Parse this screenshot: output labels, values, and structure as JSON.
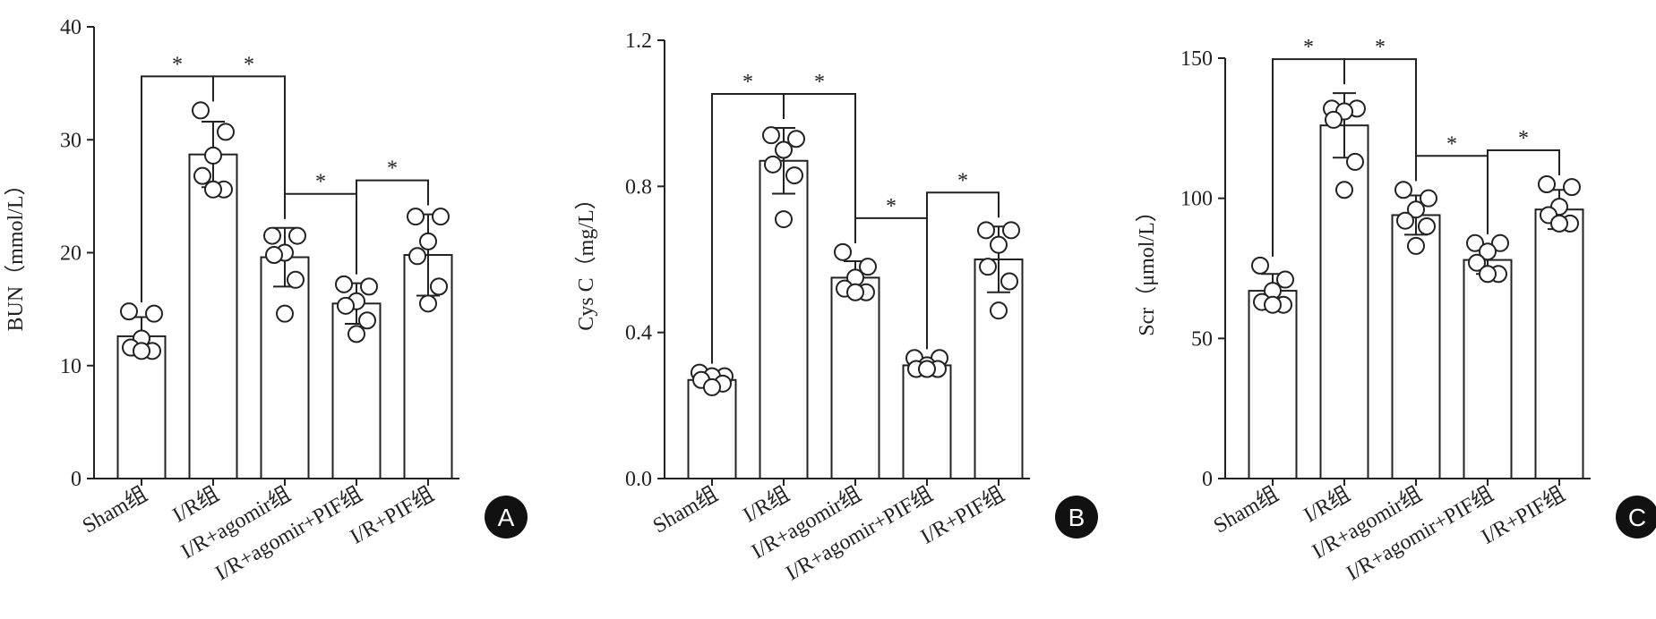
{
  "chart_data": [
    {
      "type": "bar",
      "label": "A",
      "y_label": "BUN（mmol/L）",
      "color": "#ffffff",
      "categories": [
        "Sham组",
        "I/R组",
        "I/R+agomir组",
        "I/R+agomir+PIF组",
        "I/R+PIF组"
      ],
      "values": [
        12.6,
        28.7,
        19.6,
        15.5,
        19.8
      ],
      "errors": [
        1.7,
        2.9,
        2.6,
        1.8,
        3.6
      ],
      "points": [
        [
          14.8,
          14.6,
          12.4,
          11.6,
          11.3,
          11.3
        ],
        [
          32.6,
          30.7,
          28.6,
          26.8,
          25.6,
          25.6
        ],
        [
          21.5,
          21.5,
          20.0,
          19.8,
          17.6,
          14.6
        ],
        [
          17.2,
          17.0,
          15.7,
          15.3,
          14.0,
          12.8
        ],
        [
          23.2,
          23.2,
          21.0,
          19.7,
          17.0,
          15.5
        ]
      ],
      "ylim": [
        0,
        40
      ],
      "yticks": [
        0,
        10,
        20,
        30,
        40
      ],
      "significance": [
        {
          "groups": [
            "Sham组",
            "I/R组"
          ],
          "label": "*"
        },
        {
          "groups": [
            "I/R组",
            "I/R+agomir组"
          ],
          "label": "*"
        },
        {
          "groups": [
            "I/R+agomir组",
            "I/R+agomir+PIF组"
          ],
          "label": "*"
        },
        {
          "groups": [
            "I/R+agomir+PIF组",
            "I/R+PIF组"
          ],
          "label": "*"
        }
      ]
    },
    {
      "type": "bar",
      "label": "B",
      "y_label": "Cys C（mg/L）",
      "color": "#ffffff",
      "categories": [
        "Sham组",
        "I/R组",
        "I/R+agomir组",
        "I/R+agomir+PIF组",
        "I/R+PIF组"
      ],
      "values": [
        0.27,
        0.87,
        0.55,
        0.31,
        0.6
      ],
      "errors": [
        0.02,
        0.09,
        0.045,
        0.02,
        0.09
      ],
      "points": [
        [
          0.29,
          0.28,
          0.28,
          0.27,
          0.26,
          0.25
        ],
        [
          0.94,
          0.93,
          0.9,
          0.86,
          0.83,
          0.71
        ],
        [
          0.62,
          0.58,
          0.55,
          0.52,
          0.51,
          0.51
        ],
        [
          0.33,
          0.33,
          0.31,
          0.3,
          0.3,
          0.3
        ],
        [
          0.68,
          0.68,
          0.64,
          0.58,
          0.54,
          0.46
        ]
      ],
      "ylim": [
        0,
        1.2
      ],
      "yticks": [
        {
          "value": 0,
          "label": "0.0"
        },
        0.4,
        0.8,
        1.2
      ],
      "significance": [
        {
          "groups": [
            "Sham组",
            "I/R组"
          ],
          "label": "*"
        },
        {
          "groups": [
            "I/R组",
            "I/R+agomir组"
          ],
          "label": "*"
        },
        {
          "groups": [
            "I/R+agomir组",
            "I/R+agomir+PIF组"
          ],
          "label": "*"
        },
        {
          "groups": [
            "I/R+agomir+PIF组",
            "I/R+PIF组"
          ],
          "label": "*"
        }
      ]
    },
    {
      "type": "bar",
      "label": "C",
      "y_label": "Scr（μmol/L）",
      "color": "#ffffff",
      "categories": [
        "Sham组",
        "I/R组",
        "I/R+agomir组",
        "I/R+agomir+PIF组",
        "I/R+PIF组"
      ],
      "values": [
        67,
        126,
        94,
        78,
        96
      ],
      "errors": [
        6,
        11.5,
        7,
        5,
        7
      ],
      "points": [
        [
          76,
          71,
          67,
          63,
          62,
          62
        ],
        [
          132,
          132,
          131,
          128,
          113,
          103
        ],
        [
          103,
          100,
          96,
          92,
          90,
          83
        ],
        [
          84,
          84,
          81,
          77,
          73,
          73
        ],
        [
          105,
          104,
          97,
          94,
          91,
          91
        ]
      ],
      "ylim": [
        0,
        150
      ],
      "yticks": [
        0,
        50,
        100,
        150
      ],
      "significance": [
        {
          "groups": [
            "Sham组",
            "I/R组"
          ],
          "label": "*"
        },
        {
          "groups": [
            "I/R组",
            "I/R+agomir组"
          ],
          "label": "*"
        },
        {
          "groups": [
            "I/R+agomir组",
            "I/R+agomir+PIF组"
          ],
          "label": "*"
        },
        {
          "groups": [
            "I/R+agomir+PIF组",
            "I/R+PIF组"
          ],
          "label": "*"
        }
      ]
    }
  ]
}
